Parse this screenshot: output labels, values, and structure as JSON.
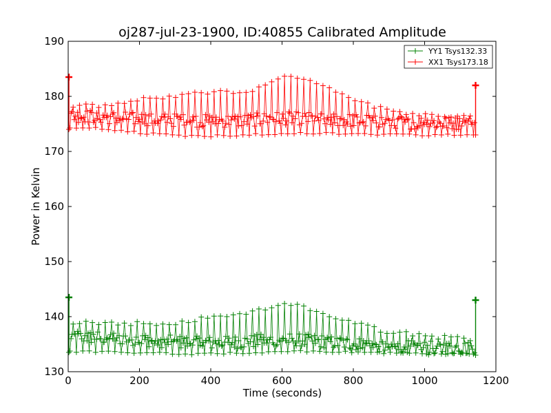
{
  "chart_data": {
    "type": "line",
    "title": "oj287-jul-23-1900, ID:40855 Calibrated Amplitude",
    "xlabel": "Time (seconds)",
    "ylabel": "Power in Kelvin",
    "xlim": [
      0,
      1200
    ],
    "ylim": [
      130,
      190
    ],
    "xticks": [
      "0",
      "200",
      "400",
      "600",
      "800",
      "1000",
      "1200"
    ],
    "yticks": [
      "130",
      "140",
      "150",
      "160",
      "170",
      "180",
      "190"
    ],
    "grid": false,
    "legend_position": "top-right",
    "marker": "plus",
    "series": [
      {
        "name": "YY1 Tsys132.33",
        "color": "#008000",
        "x_range": [
          0,
          1145
        ],
        "spike_start": [
          143.5,
          133.5
        ],
        "spike_end": [
          143.0,
          133.0
        ],
        "baseline_low": [
          133.5,
          133.4,
          133.3,
          133.2,
          133.1,
          133.1,
          133.2,
          133.3,
          133.4,
          133.5,
          133.4,
          133.3,
          133.1,
          133.0,
          133.1,
          133.2
        ],
        "envelope_high_x": [
          0,
          100,
          200,
          300,
          400,
          500,
          560,
          600,
          630,
          700,
          800,
          900,
          1000,
          1100,
          1140
        ],
        "envelope_high": [
          139.5,
          139.2,
          139.1,
          139.2,
          140.2,
          141.0,
          142.0,
          142.6,
          142.8,
          141.5,
          139.2,
          137.6,
          136.9,
          136.4,
          136.1
        ],
        "bulk_mean": [
          136.5,
          136.2,
          136.0,
          135.6,
          135.3,
          135.2,
          135.4,
          135.8,
          135.8,
          135.4,
          135.0,
          134.6,
          134.4,
          134.3,
          134.3
        ]
      },
      {
        "name": "XX1 Tsys173.18",
        "color": "#ff0000",
        "x_range": [
          0,
          1145
        ],
        "spike_start": [
          183.5,
          174.0
        ],
        "spike_end": [
          182.0,
          173.0
        ],
        "baseline_low": [
          174.2,
          174.0,
          173.5,
          173.0,
          172.8,
          172.6,
          172.7,
          172.9,
          173.0,
          173.1,
          173.0,
          172.9,
          172.8,
          172.8,
          172.9,
          173.0
        ],
        "envelope_high_x": [
          0,
          100,
          200,
          300,
          400,
          500,
          560,
          600,
          630,
          700,
          800,
          900,
          1000,
          1100,
          1140
        ],
        "envelope_high": [
          178.5,
          178.8,
          179.8,
          180.2,
          181.2,
          181.2,
          182.5,
          184.2,
          184.3,
          183.0,
          179.8,
          177.8,
          177.0,
          176.6,
          176.5
        ],
        "bulk_mean": [
          176.5,
          176.3,
          176.0,
          175.8,
          175.6,
          175.5,
          175.6,
          176.0,
          176.0,
          175.8,
          175.6,
          175.4,
          175.2,
          175.1,
          175.0
        ]
      }
    ]
  }
}
